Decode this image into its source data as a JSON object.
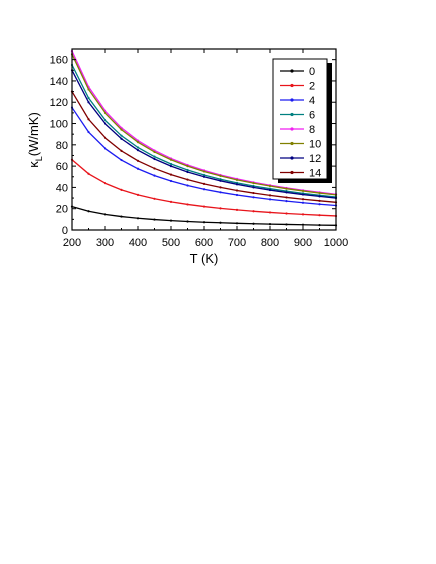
{
  "chart_data": {
    "type": "line",
    "xlabel": "T (K)",
    "ylabel_main": "κ",
    "ylabel_sub": "L",
    "ylabel_rest": "(W/mK)",
    "xlim": [
      200,
      1000
    ],
    "ylim": [
      0,
      170
    ],
    "xticks": [
      200,
      300,
      400,
      500,
      600,
      700,
      800,
      900,
      1000
    ],
    "yticks": [
      0,
      20,
      40,
      60,
      80,
      100,
      120,
      140,
      160
    ],
    "grid": false,
    "legend_position": "top-right",
    "x": [
      200,
      250,
      300,
      350,
      400,
      450,
      500,
      550,
      600,
      650,
      700,
      750,
      800,
      850,
      900,
      950,
      1000
    ],
    "series": [
      {
        "name": "0",
        "color": "#000000",
        "values": [
          22,
          17.6,
          14.7,
          12.6,
          11,
          9.8,
          8.8,
          8,
          7.3,
          6.8,
          6.3,
          5.9,
          5.5,
          5.2,
          4.9,
          4.6,
          4.4
        ]
      },
      {
        "name": "2",
        "color": "#e8141b",
        "values": [
          66,
          52.8,
          44,
          37.7,
          33,
          29.3,
          26.4,
          24,
          22,
          20.3,
          18.9,
          17.6,
          16.5,
          15.5,
          14.7,
          13.9,
          13.2
        ]
      },
      {
        "name": "4",
        "color": "#1c1cf0",
        "values": [
          115,
          92,
          76.7,
          65.7,
          57.5,
          51.1,
          46,
          41.8,
          38.3,
          35.4,
          32.9,
          30.7,
          28.8,
          27.1,
          25.6,
          24.2,
          23
        ]
      },
      {
        "name": "6",
        "color": "#008080",
        "values": [
          155,
          124,
          103.3,
          88.6,
          77.5,
          68.9,
          62,
          56.4,
          51.7,
          47.7,
          44.3,
          41.3,
          38.8,
          36.5,
          34.4,
          32.6,
          31
        ]
      },
      {
        "name": "8",
        "color": "#f01ff0",
        "values": [
          168,
          134.4,
          112,
          96,
          84,
          74.7,
          67.2,
          61.1,
          56,
          51.7,
          48,
          44.8,
          42,
          39.5,
          37.3,
          35.4,
          33.6
        ]
      },
      {
        "name": "10",
        "color": "#808000",
        "values": [
          165,
          132,
          110,
          94.3,
          82.5,
          73.3,
          66,
          60,
          55,
          50.8,
          47.1,
          44,
          41.3,
          38.8,
          36.7,
          34.7,
          33
        ]
      },
      {
        "name": "12",
        "color": "#000080",
        "values": [
          150,
          120,
          100,
          85.7,
          75,
          66.7,
          60,
          54.5,
          50,
          46.2,
          42.9,
          40,
          37.5,
          35.3,
          33.3,
          31.6,
          30
        ]
      },
      {
        "name": "14",
        "color": "#800000",
        "values": [
          130,
          104,
          86.7,
          74.3,
          65,
          57.8,
          52,
          47.3,
          43.3,
          40,
          37.1,
          34.7,
          32.5,
          30.6,
          28.9,
          27.4,
          26
        ]
      }
    ]
  }
}
